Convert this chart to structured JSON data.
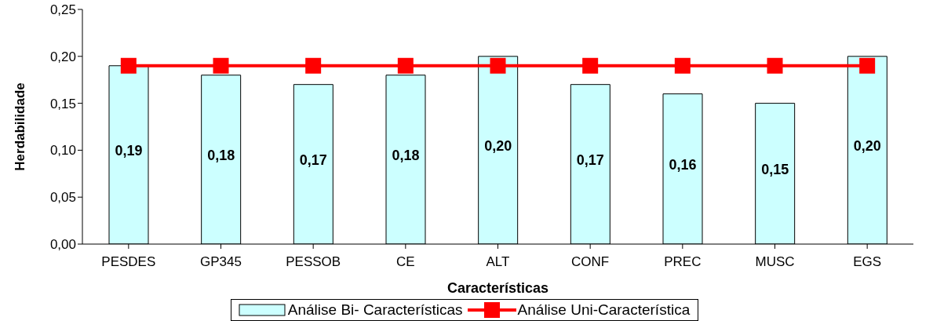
{
  "chart_data": {
    "type": "bar",
    "xlabel": "Características",
    "ylabel": "Herdabilidade",
    "categories": [
      "PESDES",
      "GP345",
      "PESSOB",
      "CE",
      "ALT",
      "CONF",
      "PREC",
      "MUSC",
      "EGS"
    ],
    "series": [
      {
        "name": "Análise Bi- Características",
        "color": "#ccffff",
        "values": [
          0.19,
          0.18,
          0.17,
          0.18,
          0.2,
          0.17,
          0.16,
          0.15,
          0.2
        ],
        "value_labels": [
          "0,19",
          "0,18",
          "0,17",
          "0,18",
          "0,20",
          "0,17",
          "0,16",
          "0,15",
          "0,20"
        ]
      },
      {
        "name": "Análise Uni-Característica",
        "type": "line",
        "color": "#ff0000",
        "marker": "square",
        "values": [
          0.19,
          0.19,
          0.19,
          0.19,
          0.19,
          0.19,
          0.19,
          0.19,
          0.19
        ]
      }
    ],
    "ylim": [
      0,
      0.25
    ],
    "yticks": [
      {
        "value": 0,
        "label": "0,00"
      },
      {
        "value": 0.05,
        "label": "0,05"
      },
      {
        "value": 0.1,
        "label": "0,10"
      },
      {
        "value": 0.15,
        "label": "0,15"
      },
      {
        "value": 0.2,
        "label": "0,20"
      },
      {
        "value": 0.25,
        "label": "0,25"
      }
    ],
    "legend": "bottom"
  }
}
